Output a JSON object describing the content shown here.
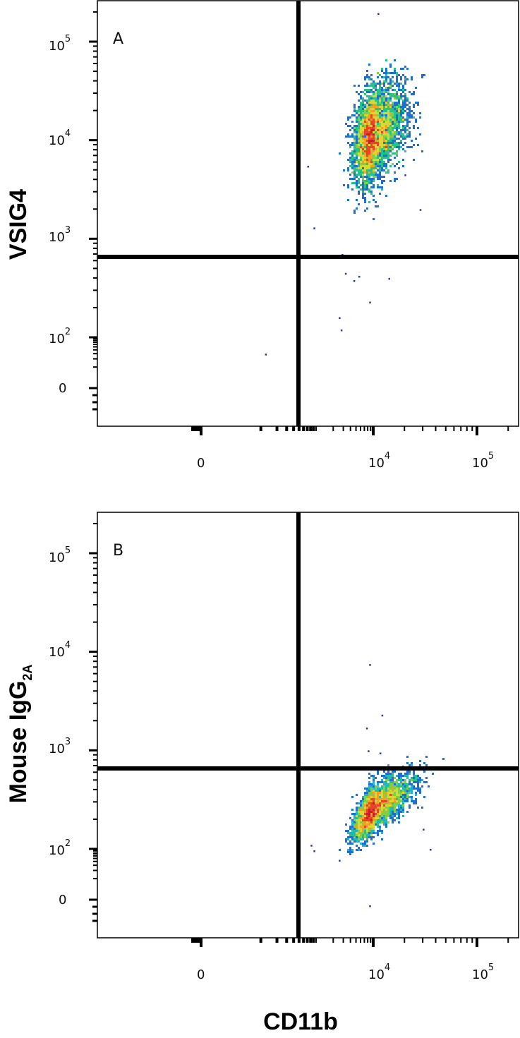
{
  "chart_data": [
    {
      "type": "scatter",
      "panel_label": "A",
      "xlabel": "CD11b",
      "ylabel": "VSIG4",
      "x_scale": "biexponential",
      "y_scale": "biexponential",
      "x_tick_labels": [
        {
          "value": 0,
          "base": "0",
          "exp": ""
        },
        {
          "value": 10000,
          "base": "10",
          "exp": "4"
        },
        {
          "value": 100000,
          "base": "10",
          "exp": "5"
        }
      ],
      "y_tick_labels": [
        {
          "value": 0,
          "base": "0",
          "exp": ""
        },
        {
          "value": 100,
          "base": "10",
          "exp": "2"
        },
        {
          "value": 1000,
          "base": "10",
          "exp": "3"
        },
        {
          "value": 10000,
          "base": "10",
          "exp": "4"
        },
        {
          "value": 100000,
          "base": "10",
          "exp": "5"
        }
      ],
      "quadrant_gate": {
        "x": 1000,
        "y": 600
      },
      "population": {
        "center": {
          "x": 9500,
          "y": 12000
        },
        "log_spread": {
          "x": 0.16,
          "y": 0.24
        },
        "correlation": 0.35,
        "events": 4200
      },
      "outliers": [
        {
          "x": 2800,
          "y": 700
        },
        {
          "x": 3200,
          "y": 450
        },
        {
          "x": 4500,
          "y": 380
        },
        {
          "x": 2500,
          "y": 160
        },
        {
          "x": 2700,
          "y": 120
        },
        {
          "x": 8500,
          "y": 230
        },
        {
          "x": 300,
          "y": 650
        },
        {
          "x": 120,
          "y": 30
        },
        {
          "x": 700,
          "y": 5500
        },
        {
          "x": 900,
          "y": 1300
        },
        {
          "x": 5500,
          "y": 420
        },
        {
          "x": 14000,
          "y": 400
        },
        {
          "x": 20000,
          "y": 4500
        },
        {
          "x": 28000,
          "y": 2000
        },
        {
          "x": 11000,
          "y": 195000
        }
      ]
    },
    {
      "type": "scatter",
      "panel_label": "B",
      "xlabel": "CD11b",
      "ylabel": "Mouse IgG",
      "ylabel_subscript": "2A",
      "x_scale": "biexponential",
      "y_scale": "biexponential",
      "x_tick_labels": [
        {
          "value": 0,
          "base": "0",
          "exp": ""
        },
        {
          "value": 10000,
          "base": "10",
          "exp": "4"
        },
        {
          "value": 100000,
          "base": "10",
          "exp": "5"
        }
      ],
      "y_tick_labels": [
        {
          "value": 0,
          "base": "0",
          "exp": ""
        },
        {
          "value": 100,
          "base": "10",
          "exp": "2"
        },
        {
          "value": 1000,
          "base": "10",
          "exp": "3"
        },
        {
          "value": 10000,
          "base": "10",
          "exp": "4"
        },
        {
          "value": 100000,
          "base": "10",
          "exp": "5"
        }
      ],
      "quadrant_gate": {
        "x": 1000,
        "y": 600
      },
      "population": {
        "center": {
          "x": 10000,
          "y": 270
        },
        "log_spread": {
          "x": 0.17,
          "y": 0.15
        },
        "correlation": 0.7,
        "events": 3600
      },
      "outliers": [
        {
          "x": 8500,
          "y": 7500
        },
        {
          "x": 8000,
          "y": 1000
        },
        {
          "x": 12000,
          "y": 2300
        },
        {
          "x": 7500,
          "y": 1700
        },
        {
          "x": 11500,
          "y": 950
        },
        {
          "x": 19000,
          "y": 700
        },
        {
          "x": 800,
          "y": 110
        },
        {
          "x": 900,
          "y": 90
        },
        {
          "x": 2500,
          "y": 45
        },
        {
          "x": 8500,
          "y": -80
        },
        {
          "x": 35000,
          "y": 100
        },
        {
          "x": 30000,
          "y": 160
        }
      ]
    }
  ],
  "colors": {
    "density": [
      "#2436a8",
      "#1f6fd1",
      "#1fb3d0",
      "#26c28a",
      "#7fd046",
      "#d8d834",
      "#f1a226",
      "#e8442a",
      "#c81e25"
    ],
    "gate": "#000000",
    "frame": "#000000"
  }
}
